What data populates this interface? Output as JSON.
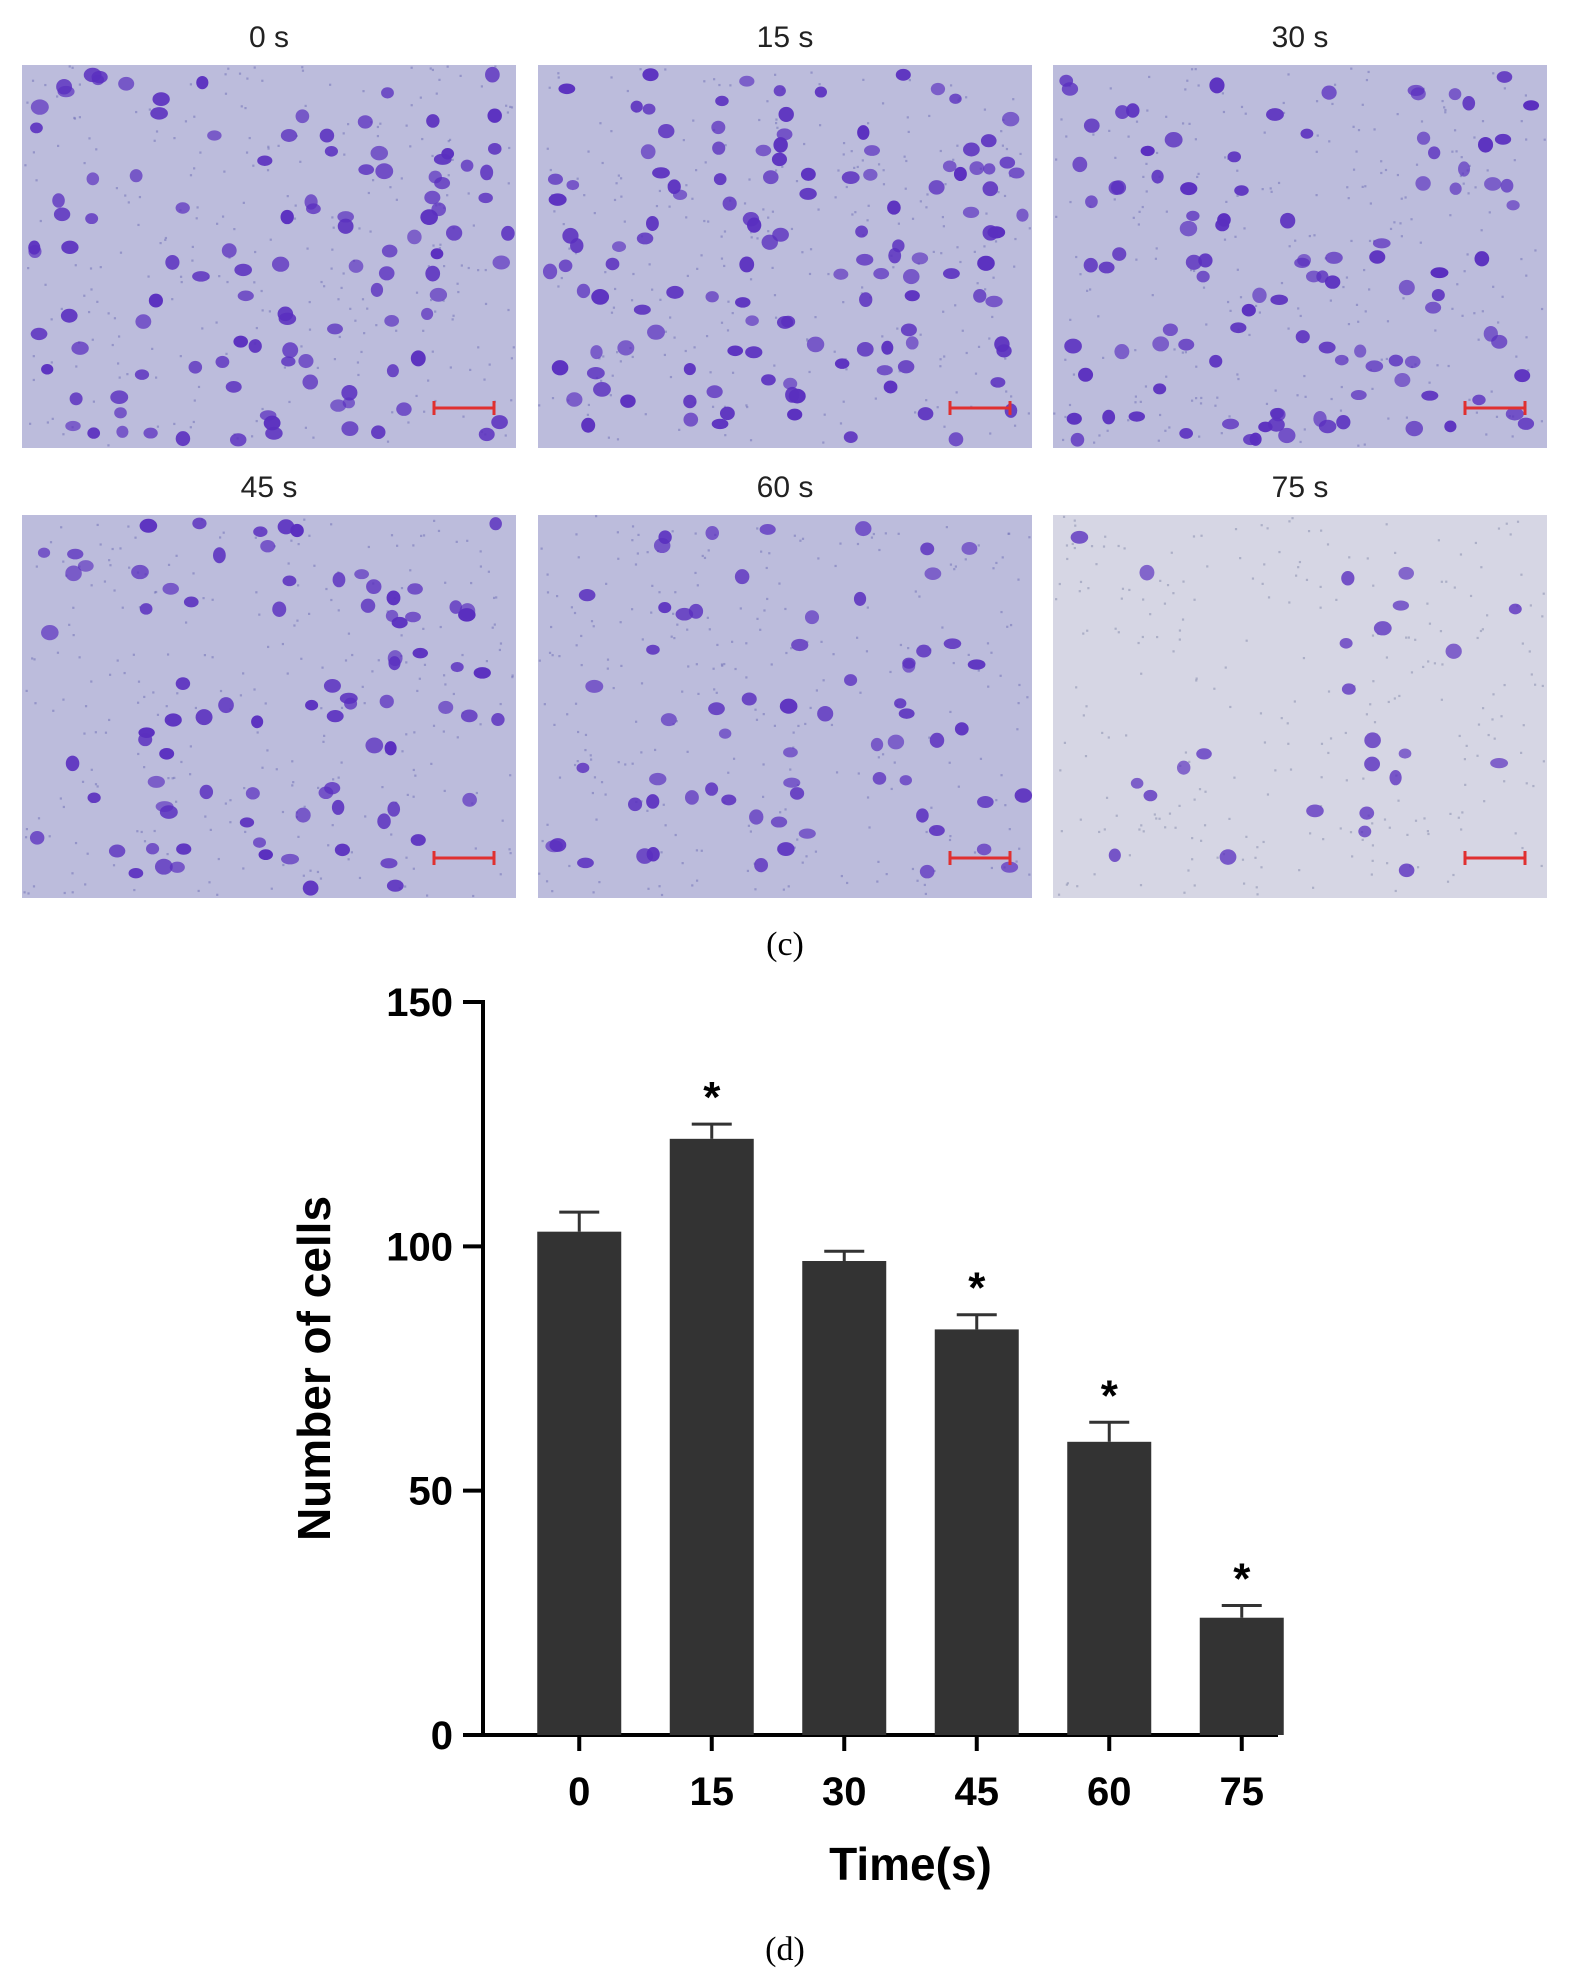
{
  "micrographs": {
    "panels": [
      {
        "label": "0 s",
        "density": 110,
        "stain": 1.0
      },
      {
        "label": "15 s",
        "density": 125,
        "stain": 1.0
      },
      {
        "label": "30 s",
        "density": 105,
        "stain": 1.0
      },
      {
        "label": "45 s",
        "density": 85,
        "stain": 1.0
      },
      {
        "label": "60 s",
        "density": 65,
        "stain": 0.85
      },
      {
        "label": "75 s",
        "density": 25,
        "stain": 0.45
      }
    ],
    "caption": "(c)",
    "colors": {
      "background": "#bcbcdc",
      "cell": "#5a2fbf",
      "scale_bar": "#e03030"
    }
  },
  "chart_caption": "(d)",
  "chart_data": {
    "type": "bar",
    "categories": [
      "0",
      "15",
      "30",
      "45",
      "60",
      "75"
    ],
    "values": [
      103,
      122,
      97,
      83,
      60,
      24
    ],
    "errors": [
      4,
      3,
      2,
      3,
      4,
      2.5
    ],
    "significance": [
      "",
      "*",
      "",
      "*",
      "*",
      "*"
    ],
    "xlabel": "Time(s)",
    "ylabel": "Number of cells",
    "ylim": [
      0,
      150
    ],
    "yticks": [
      0,
      50,
      100,
      150
    ],
    "bar_color": "#333333",
    "grid": false
  }
}
